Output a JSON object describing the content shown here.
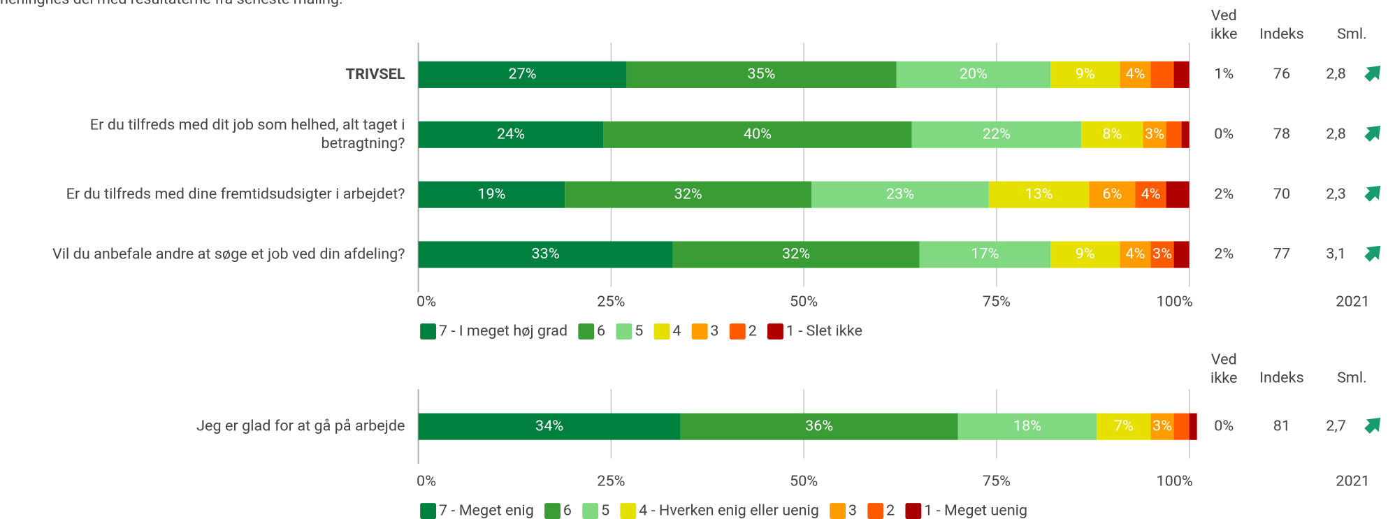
{
  "intro": "meningnes del med resultaterne fra seneste måling.",
  "chart_data": [
    {
      "type": "bar",
      "orientation": "horizontal",
      "stacked": true,
      "categories": [
        "TRIVSEL",
        "Er du tilfreds med dit job som helhed, alt taget i betragtning?",
        "Er du tilfreds med dine fremtidsudsigter i arbejdet?",
        "Vil du anbefale andre at søge et job ved din afdeling?"
      ],
      "series": [
        {
          "name": "7 - I meget høj grad",
          "color": "#00803f",
          "values": [
            27,
            24,
            19,
            33
          ],
          "value_labels": [
            "27%",
            "24%",
            "19%",
            "33%"
          ]
        },
        {
          "name": "6",
          "color": "#399c35",
          "values": [
            35,
            40,
            32,
            32
          ],
          "value_labels": [
            "35%",
            "40%",
            "32%",
            "32%"
          ]
        },
        {
          "name": "5",
          "color": "#80d880",
          "values": [
            20,
            22,
            23,
            17
          ],
          "value_labels": [
            "20%",
            "22%",
            "23%",
            "17%"
          ]
        },
        {
          "name": "4",
          "color": "#e6e000",
          "values": [
            9,
            8,
            13,
            9
          ],
          "value_labels": [
            "9%",
            "8%",
            "13%",
            "9%"
          ]
        },
        {
          "name": "3",
          "color": "#ff9c00",
          "values": [
            4,
            3,
            6,
            4
          ],
          "value_labels": [
            "4%",
            "3%",
            "6%",
            "4%"
          ]
        },
        {
          "name": "2",
          "color": "#ff5a00",
          "values": [
            3,
            2,
            4,
            3
          ],
          "value_labels": [
            null,
            null,
            "4%",
            "3%"
          ]
        },
        {
          "name": "1 - Slet ikke",
          "color": "#b00000",
          "values": [
            2,
            1,
            3,
            2
          ],
          "value_labels": [
            null,
            null,
            null,
            null
          ]
        }
      ],
      "xlim": [
        0,
        100
      ],
      "xticks": [
        {
          "value": 0,
          "label": "0%"
        },
        {
          "value": 25,
          "label": "25%"
        },
        {
          "value": 50,
          "label": "50%"
        },
        {
          "value": 75,
          "label": "75%"
        },
        {
          "value": 100,
          "label": "100%"
        }
      ],
      "grid": true,
      "columns": [
        {
          "header": "Ved ikke",
          "values": [
            "1%",
            "0%",
            "2%",
            "2%"
          ]
        },
        {
          "header": "Indeks",
          "values": [
            76,
            78,
            70,
            77
          ]
        },
        {
          "header": "Sml.",
          "values": [
            "2,8",
            "2,8",
            "2,3",
            "3,1"
          ],
          "footer": "2021"
        }
      ]
    },
    {
      "type": "bar",
      "orientation": "horizontal",
      "stacked": true,
      "categories": [
        "Jeg er glad for at gå på arbejde"
      ],
      "series": [
        {
          "name": "7 - Meget enig",
          "color": "#00803f",
          "values": [
            34
          ],
          "value_labels": [
            "34%"
          ]
        },
        {
          "name": "6",
          "color": "#399c35",
          "values": [
            36
          ],
          "value_labels": [
            "36%"
          ]
        },
        {
          "name": "5",
          "color": "#80d880",
          "values": [
            18
          ],
          "value_labels": [
            "18%"
          ]
        },
        {
          "name": "4 - Hverken enig eller uenig",
          "color": "#e6e000",
          "values": [
            7
          ],
          "value_labels": [
            "7%"
          ]
        },
        {
          "name": "3",
          "color": "#ff9c00",
          "values": [
            3
          ],
          "value_labels": [
            "3%"
          ]
        },
        {
          "name": "2",
          "color": "#ff5a00",
          "values": [
            2
          ],
          "value_labels": [
            null
          ]
        },
        {
          "name": "1 - Meget uenig",
          "color": "#a80000",
          "values": [
            1
          ],
          "value_labels": [
            null
          ]
        }
      ],
      "xlim": [
        0,
        100
      ],
      "xticks": [
        {
          "value": 0,
          "label": "0%"
        },
        {
          "value": 25,
          "label": "25%"
        },
        {
          "value": 50,
          "label": "50%"
        },
        {
          "value": 75,
          "label": "75%"
        },
        {
          "value": 100,
          "label": "100%"
        }
      ],
      "grid": true,
      "columns": [
        {
          "header": "Ved ikke",
          "values": [
            "0%"
          ]
        },
        {
          "header": "Indeks",
          "values": [
            81
          ]
        },
        {
          "header": "Sml.",
          "values": [
            "2,7"
          ],
          "footer": "2021"
        }
      ]
    }
  ]
}
